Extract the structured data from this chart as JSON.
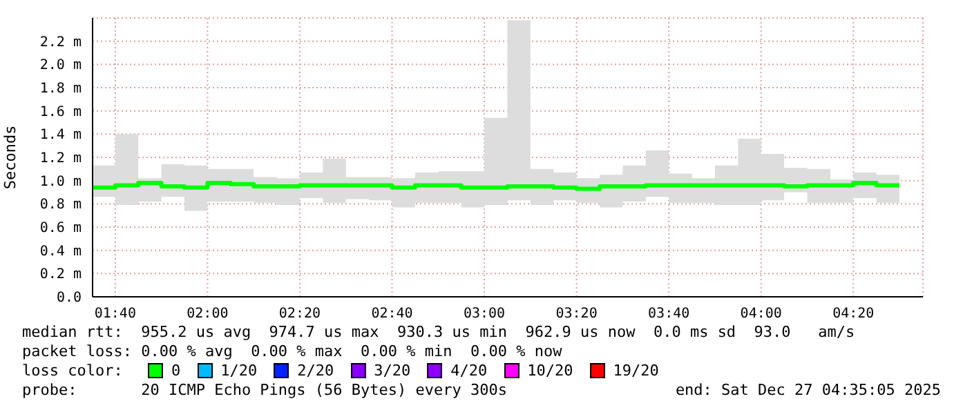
{
  "chart_data": {
    "type": "step",
    "ylabel": "Seconds",
    "x": [
      1.5847,
      1.6667,
      1.75,
      1.8333,
      1.9167,
      2.0,
      2.0833,
      2.1667,
      2.25,
      2.3333,
      2.4167,
      2.5,
      2.5833,
      2.6667,
      2.75,
      2.8333,
      2.9167,
      3.0,
      3.0833,
      3.1667,
      3.25,
      3.3333,
      3.4167,
      3.5,
      3.5833,
      3.6667,
      3.75,
      3.8333,
      3.9167,
      4.0,
      4.0833,
      4.1667,
      4.25,
      4.3333,
      4.4167,
      4.5
    ],
    "series": [
      {
        "color": "#00ff00",
        "values": [
          0.94,
          0.96,
          0.98,
          0.95,
          0.94,
          0.98,
          0.97,
          0.95,
          0.95,
          0.96,
          0.96,
          0.96,
          0.96,
          0.94,
          0.96,
          0.96,
          0.94,
          0.94,
          0.95,
          0.95,
          0.94,
          0.93,
          0.95,
          0.95,
          0.96,
          0.96,
          0.96,
          0.96,
          0.96,
          0.96,
          0.95,
          0.96,
          0.96,
          0.98,
          0.96,
          0.96
        ],
        "lower": [
          0.86,
          0.79,
          0.82,
          0.86,
          0.74,
          0.82,
          0.82,
          0.81,
          0.79,
          0.85,
          0.81,
          0.84,
          0.83,
          0.77,
          0.81,
          0.81,
          0.77,
          0.79,
          0.83,
          0.79,
          0.83,
          0.81,
          0.77,
          0.82,
          0.86,
          0.81,
          0.81,
          0.79,
          0.79,
          0.83,
          0.9,
          0.81,
          0.81,
          0.85,
          0.81,
          0.81
        ],
        "upper": [
          1.13,
          1.4,
          1.02,
          1.14,
          1.13,
          1.1,
          1.1,
          1.03,
          1.02,
          1.07,
          1.19,
          1.03,
          1.03,
          1.02,
          1.07,
          1.08,
          1.08,
          1.54,
          2.38,
          1.1,
          1.07,
          1.02,
          1.05,
          1.13,
          1.26,
          1.06,
          1.02,
          1.13,
          1.36,
          1.23,
          1.11,
          1.1,
          1.01,
          1.07,
          1.05,
          1.05
        ]
      }
    ],
    "xlim": [
      1.5847,
      4.5847
    ],
    "xticks": [
      {
        "value": 1.6667,
        "label": "01:40"
      },
      {
        "value": 2,
        "label": "02:00"
      },
      {
        "value": 2.3333,
        "label": "02:20"
      },
      {
        "value": 2.6667,
        "label": "02:40"
      },
      {
        "value": 3,
        "label": "03:00"
      },
      {
        "value": 3.3333,
        "label": "03:20"
      },
      {
        "value": 3.6667,
        "label": "03:40"
      },
      {
        "value": 4,
        "label": "04:00"
      },
      {
        "value": 4.3333,
        "label": "04:20"
      }
    ],
    "ylim": [
      0,
      2.4
    ],
    "yticks": [
      {
        "value": 0,
        "label": "0.0"
      },
      {
        "value": 0.2,
        "label": "0.2 m"
      },
      {
        "value": 0.4,
        "label": "0.4 m"
      },
      {
        "value": 0.6,
        "label": "0.6 m"
      },
      {
        "value": 0.8,
        "label": "0.8 m"
      },
      {
        "value": 1.0,
        "label": "1.0 m"
      },
      {
        "value": 1.2,
        "label": "1.2 m"
      },
      {
        "value": 1.4,
        "label": "1.4 m"
      },
      {
        "value": 1.6,
        "label": "1.6 m"
      },
      {
        "value": 1.8,
        "label": "1.8 m"
      },
      {
        "value": 2.0,
        "label": "2.0 m"
      },
      {
        "value": 2.2,
        "label": "2.2 m"
      }
    ],
    "grid": true,
    "annotations": [
      "median rtt:  955.2 us avg  974.7 us max  930.3 us min  962.9 us now  0.0 ms sd  93.0   am/s",
      "packet loss: 0.00 % avg  0.00 % max  0.00 % min  0.00 % now",
      "loss color:",
      "0",
      "1/20",
      "2/20",
      "3/20",
      "4/20",
      "10/20",
      "19/20",
      "probe:       20 ICMP Echo Pings (56 Bytes) every 300s",
      "end: Sat Dec 27 04:35:05 2025"
    ]
  }
}
